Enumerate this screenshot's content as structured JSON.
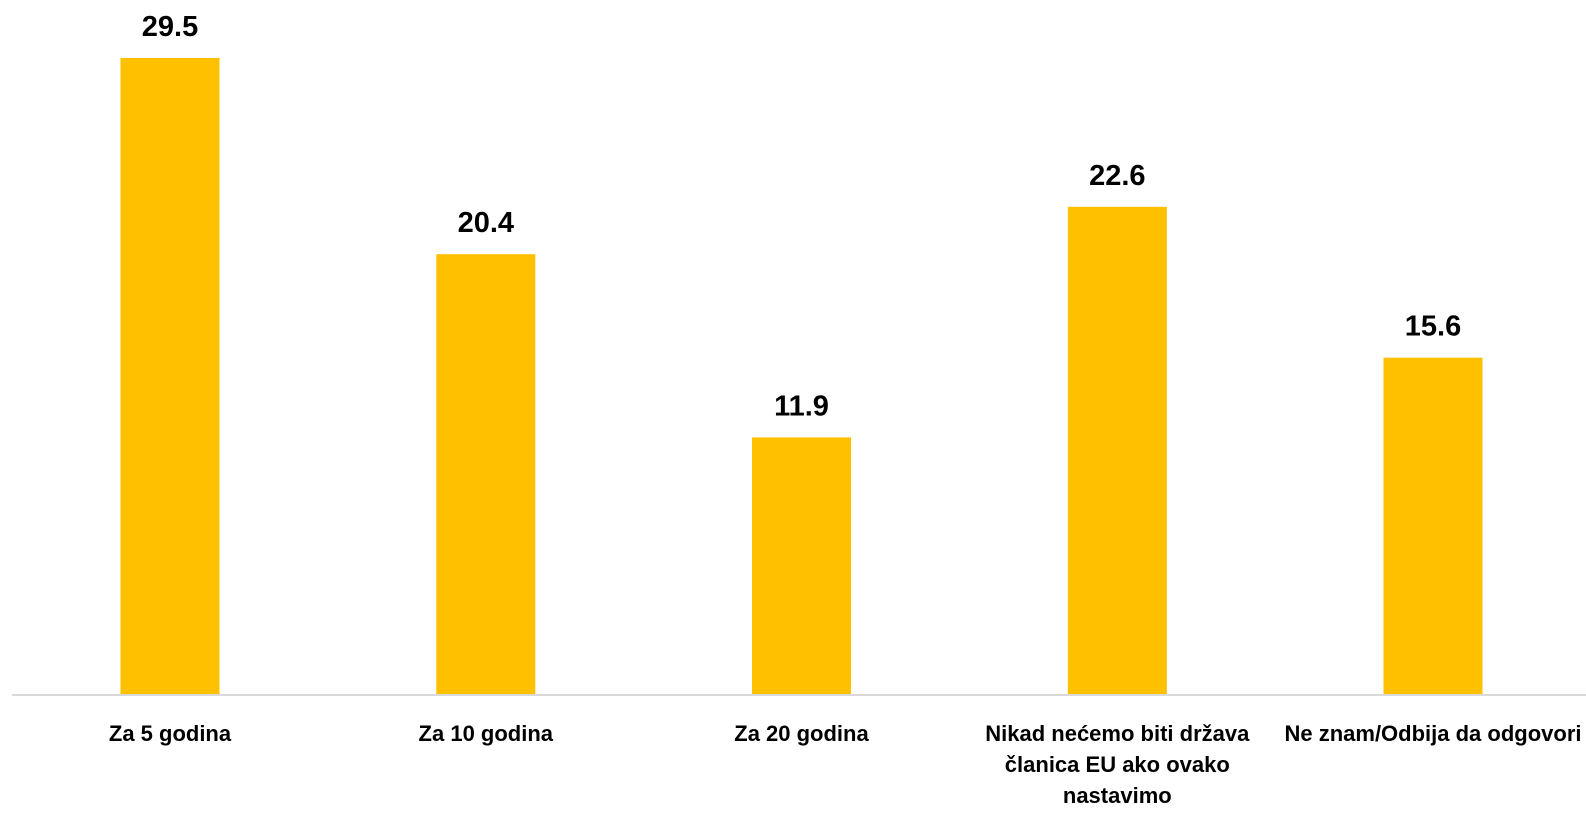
{
  "chart_data": {
    "type": "bar",
    "categories": [
      "Za 5 godina",
      "Za 10 godina",
      "Za 20 godina",
      "Nikad nećemo biti država članica EU ako ovako nastavimo",
      "Ne znam/Odbija da odgovori"
    ],
    "values": [
      29.5,
      20.4,
      11.9,
      22.6,
      15.6
    ],
    "value_labels": [
      "29.5",
      "20.4",
      "11.9",
      "22.6",
      "15.6"
    ],
    "ylim": [
      0,
      29.5
    ],
    "grid": false,
    "legend": "none",
    "bar_color": "#FFC000",
    "axis_color": "#D9D9D9"
  }
}
